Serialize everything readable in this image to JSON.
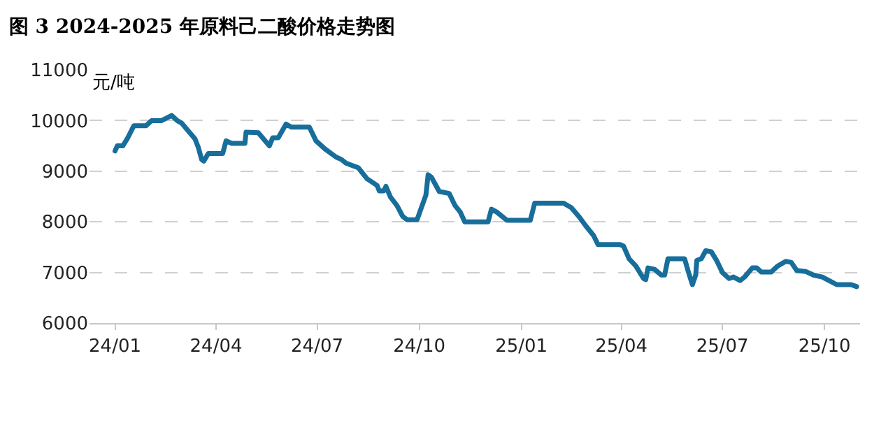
{
  "chart_data": {
    "type": "line",
    "title": "图 3 2024-2025 年原料己二酸价格走势图",
    "ylabel": "元/吨",
    "x": [
      "2024-01-01",
      "2024-01-03",
      "2024-01-08",
      "2024-01-12",
      "2024-01-18",
      "2024-01-29",
      "2024-02-03",
      "2024-02-12",
      "2024-02-21",
      "2024-02-26",
      "2024-03-01",
      "2024-03-06",
      "2024-03-13",
      "2024-03-16",
      "2024-03-19",
      "2024-03-21",
      "2024-03-25",
      "2024-04-07",
      "2024-04-10",
      "2024-04-15",
      "2024-04-27",
      "2024-04-28",
      "2024-05-09",
      "2024-05-19",
      "2024-05-22",
      "2024-05-27",
      "2024-06-03",
      "2024-06-08",
      "2024-06-24",
      "2024-06-30",
      "2024-07-08",
      "2024-07-18",
      "2024-07-23",
      "2024-07-27",
      "2024-08-07",
      "2024-08-15",
      "2024-08-24",
      "2024-08-26",
      "2024-08-30",
      "2024-09-01",
      "2024-09-05",
      "2024-09-11",
      "2024-09-16",
      "2024-09-20",
      "2024-09-29",
      "2024-10-07",
      "2024-10-09",
      "2024-10-12",
      "2024-10-19",
      "2024-10-28",
      "2024-11-02",
      "2024-11-07",
      "2024-11-11",
      "2024-12-02",
      "2024-12-05",
      "2024-12-10",
      "2024-12-19",
      "2025-01-09",
      "2025-01-13",
      "2025-02-08",
      "2025-02-15",
      "2025-02-22",
      "2025-02-28",
      "2025-03-07",
      "2025-03-11",
      "2025-03-31",
      "2025-04-03",
      "2025-04-08",
      "2025-04-14",
      "2025-04-21",
      "2025-04-23",
      "2025-04-25",
      "2025-05-01",
      "2025-05-07",
      "2025-05-10",
      "2025-05-13",
      "2025-05-28",
      "2025-05-31",
      "2025-06-04",
      "2025-06-07",
      "2025-06-08",
      "2025-06-12",
      "2025-06-16",
      "2025-06-21",
      "2025-06-26",
      "2025-07-01",
      "2025-07-07",
      "2025-07-11",
      "2025-07-17",
      "2025-07-21",
      "2025-07-28",
      "2025-08-01",
      "2025-08-05",
      "2025-08-14",
      "2025-08-20",
      "2025-08-27",
      "2025-09-01",
      "2025-09-06",
      "2025-09-14",
      "2025-09-21",
      "2025-09-29",
      "2025-10-05",
      "2025-10-12",
      "2025-10-25",
      "2025-10-30"
    ],
    "series": [
      {
        "color": "#176e9b",
        "values": [
          9400,
          9500,
          9500,
          9640,
          9900,
          9900,
          10000,
          10000,
          10100,
          10000,
          9950,
          9820,
          9640,
          9470,
          9230,
          9200,
          9350,
          9350,
          9600,
          9550,
          9550,
          9770,
          9760,
          9500,
          9660,
          9660,
          9930,
          9870,
          9870,
          9600,
          9440,
          9280,
          9230,
          9160,
          9070,
          8850,
          8720,
          8610,
          8610,
          8700,
          8490,
          8320,
          8110,
          8040,
          8040,
          8530,
          8930,
          8880,
          8600,
          8560,
          8330,
          8190,
          8000,
          8000,
          8250,
          8190,
          8030,
          8030,
          8370,
          8370,
          8280,
          8100,
          7920,
          7730,
          7550,
          7550,
          7520,
          7270,
          7130,
          6880,
          6860,
          7090,
          7060,
          6950,
          6950,
          7270,
          7270,
          7040,
          6760,
          6950,
          7240,
          7270,
          7430,
          7410,
          7230,
          7000,
          6880,
          6910,
          6840,
          6910,
          7090,
          7090,
          7010,
          7010,
          7130,
          7220,
          7200,
          7040,
          7020,
          6950,
          6910,
          6840,
          6760,
          6760,
          6720
        ]
      }
    ],
    "xlim": [
      "2023-12-09",
      "2025-11-02"
    ],
    "xticks": [
      {
        "value": "2024-01-01",
        "label": "24/01"
      },
      {
        "value": "2024-04-01",
        "label": "24/04"
      },
      {
        "value": "2024-07-01",
        "label": "24/07"
      },
      {
        "value": "2024-10-01",
        "label": "24/10"
      },
      {
        "value": "2025-01-01",
        "label": "25/01"
      },
      {
        "value": "2025-04-01",
        "label": "25/04"
      },
      {
        "value": "2025-07-01",
        "label": "25/07"
      },
      {
        "value": "2025-10-01",
        "label": "25/10"
      }
    ],
    "ylim": [
      6000,
      11000
    ],
    "yticks": [
      6000,
      7000,
      8000,
      9000,
      10000,
      11000
    ],
    "grid": "y",
    "marker": "none",
    "line_style": "solid"
  }
}
